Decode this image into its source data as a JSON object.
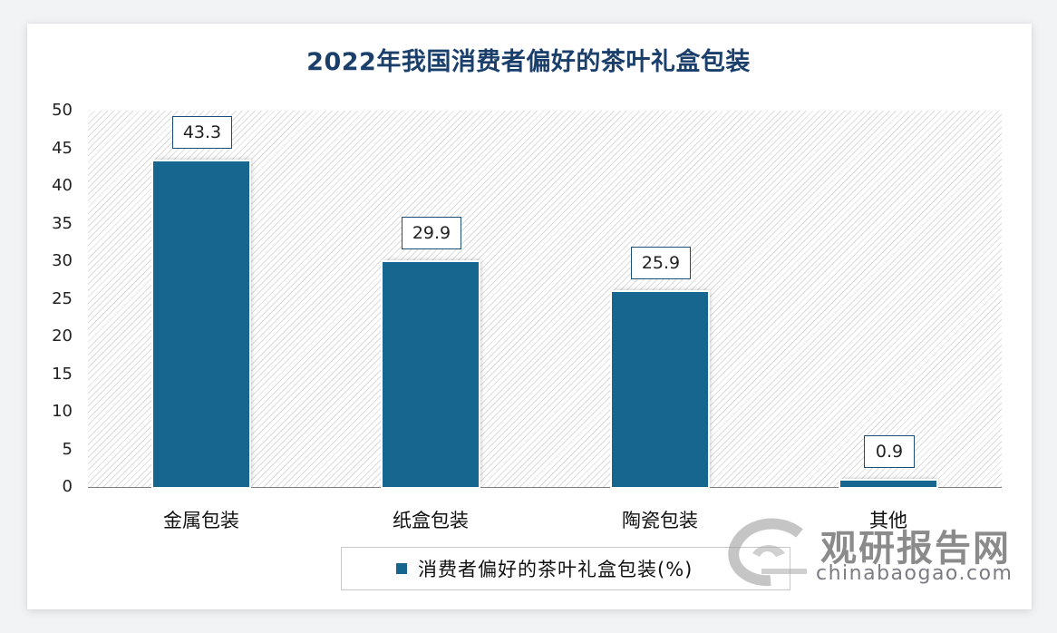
{
  "title": "2022年我国消费者偏好的茶叶礼盒包装",
  "legend": {
    "label": "消费者偏好的茶叶礼盒包装(%)",
    "color": "#17668f"
  },
  "watermark": {
    "name": "观研报告网",
    "url": "chinabaogao.com"
  },
  "y_ticks": [
    "50",
    "45",
    "40",
    "35",
    "30",
    "25",
    "20",
    "15",
    "10",
    "5",
    "0"
  ],
  "bars": [
    {
      "category": "金属包装",
      "value": 43.3,
      "label": "43.3"
    },
    {
      "category": "纸盒包装",
      "value": 29.9,
      "label": "29.9"
    },
    {
      "category": "陶瓷包装",
      "value": 25.9,
      "label": "25.9"
    },
    {
      "category": "其他",
      "value": 0.9,
      "label": "0.9"
    }
  ],
  "chart_data": {
    "type": "bar",
    "title": "2022年我国消费者偏好的茶叶礼盒包装",
    "categories": [
      "金属包装",
      "纸盒包装",
      "陶瓷包装",
      "其他"
    ],
    "series": [
      {
        "name": "消费者偏好的茶叶礼盒包装(%)",
        "values": [
          43.3,
          29.9,
          25.9,
          0.9
        ],
        "color": "#17668f"
      }
    ],
    "xlabel": "",
    "ylabel": "",
    "ylim": [
      0,
      50
    ],
    "yticks": [
      0,
      5,
      10,
      15,
      20,
      25,
      30,
      35,
      40,
      45,
      50
    ],
    "grid": false,
    "data_labels": true,
    "legend_position": "bottom"
  }
}
